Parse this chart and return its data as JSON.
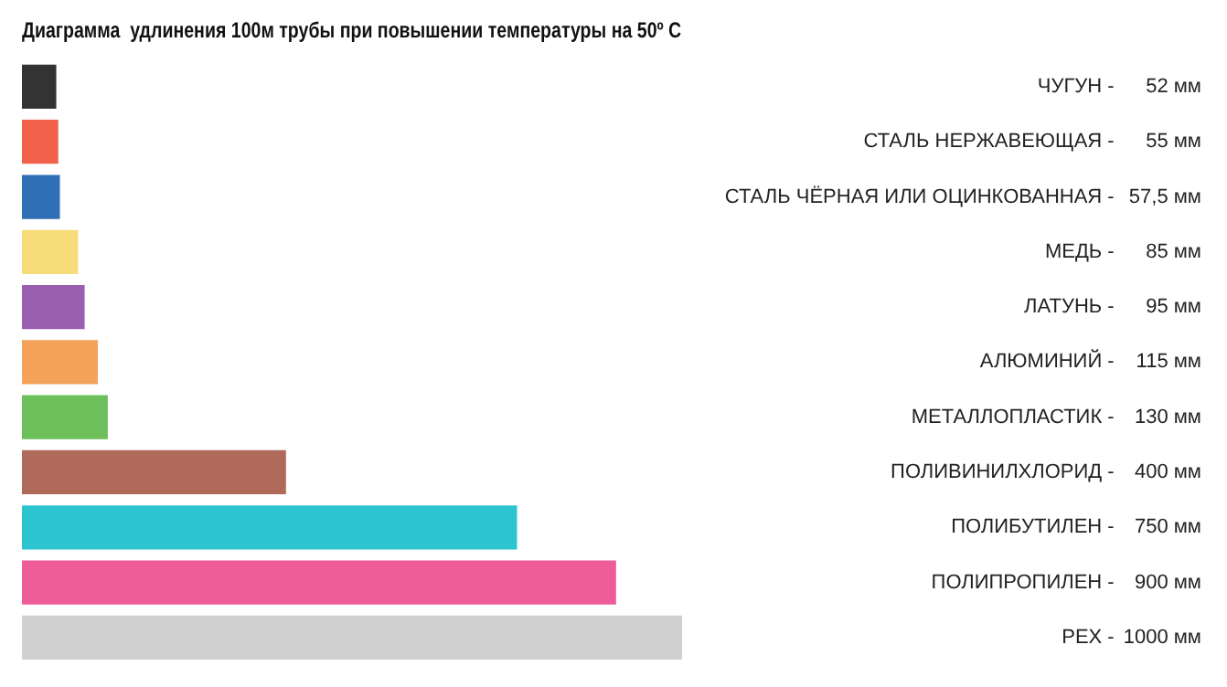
{
  "chart_data": {
    "type": "bar",
    "orientation": "horizontal",
    "title": "Диаграмма  удлинения 100м трубы при повышении температуры на 50º С",
    "categories": [
      "ЧУГУН -",
      "СТАЛЬ НЕРЖАВЕЮЩАЯ -",
      "СТАЛЬ ЧЁРНАЯ ИЛИ ОЦИНКОВАННАЯ -",
      "МЕДЬ -",
      "ЛАТУНЬ -",
      "АЛЮМИНИЙ -",
      "МЕТАЛЛОПЛАСТИК -",
      "ПОЛИВИНИЛХЛОРИД -",
      "ПОЛИБУТИЛЕН -",
      "ПОЛИПРОПИЛЕН -",
      "PEX -"
    ],
    "values": [
      52,
      55,
      57.5,
      85,
      95,
      115,
      130,
      400,
      750,
      900,
      1000
    ],
    "value_labels": [
      "52 мм",
      "55 мм",
      "57,5 мм",
      "85 мм",
      "95 мм",
      "115 мм",
      "130 мм",
      "400 мм",
      "750 мм",
      "900 мм",
      "1000 мм"
    ],
    "colors": [
      "#333333",
      "#f0604a",
      "#2f6fb5",
      "#f7dc7a",
      "#9b5fb0",
      "#f5a25a",
      "#6cbf5a",
      "#b06a5a",
      "#2cc4cf",
      "#ee5d9a",
      "#d0d0d0"
    ],
    "tick_labels": false,
    "legend": false
  }
}
